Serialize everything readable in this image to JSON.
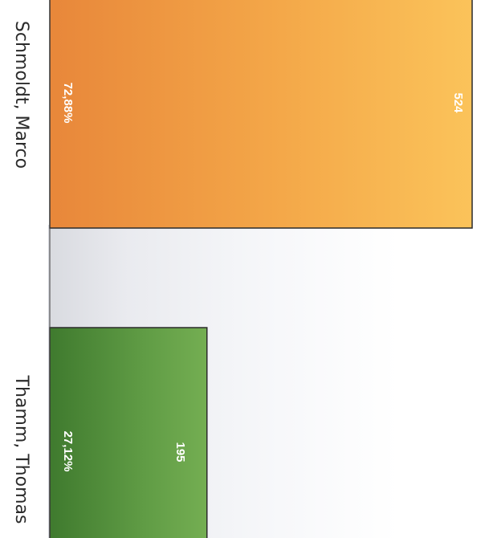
{
  "chart_data": {
    "type": "bar",
    "title": "",
    "xlabel": "",
    "ylabel": "",
    "categories": [
      "Schmoldt, Marco",
      "Thamm, Thomas"
    ],
    "values": [
      524,
      195
    ],
    "percentages": [
      "72,88%",
      "27,12%"
    ],
    "value_labels": [
      "524",
      "195"
    ],
    "orientation": "vertical-rotated-90",
    "colors": [
      "#f2a344",
      "#5f9a43"
    ],
    "grid": false,
    "legend": "none"
  }
}
